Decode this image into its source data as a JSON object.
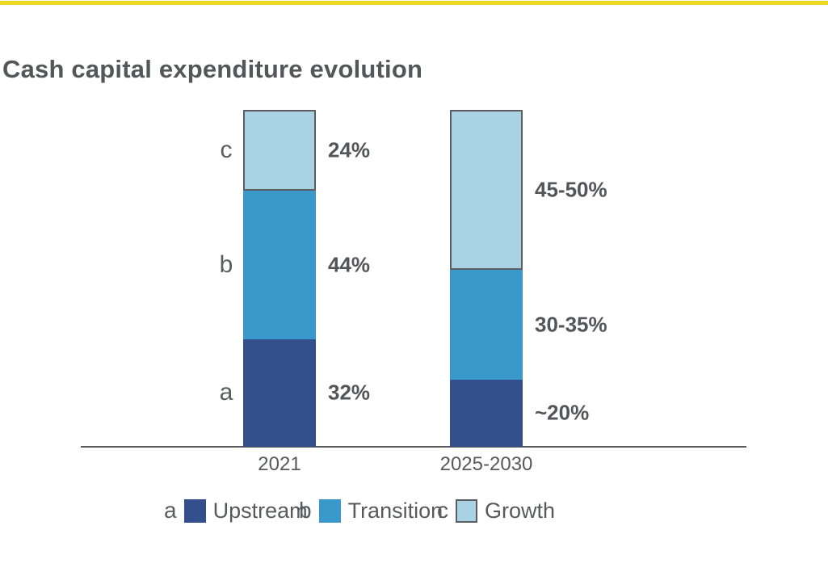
{
  "page": {
    "title": "Cash capital expenditure evolution"
  },
  "colors": {
    "accent_yellow": "#E9D724",
    "axis_gray": "#595A5C",
    "text_gray": "#58595B",
    "segment_stroke": "#5B5D60"
  },
  "chart_data": {
    "type": "bar",
    "stacked": true,
    "title": "Cash capital expenditure evolution",
    "categories": [
      "2021",
      "2025-2030"
    ],
    "series": [
      {
        "key": "a",
        "name": "Upstream",
        "color": "#34508C",
        "outlined": false,
        "values": [
          32,
          20
        ],
        "value_labels": [
          "32%",
          "~20%"
        ]
      },
      {
        "key": "b",
        "name": "Transition",
        "color": "#3A98CA",
        "outlined": false,
        "values": [
          44,
          32.5
        ],
        "value_labels": [
          "44%",
          "30-35%"
        ]
      },
      {
        "key": "c",
        "name": "Growth",
        "color": "#A9D2E4",
        "outlined": true,
        "values": [
          24,
          47.5
        ],
        "value_labels": [
          "24%",
          "45-50%"
        ]
      }
    ],
    "ylim": [
      0,
      100
    ],
    "gridlines": false,
    "y_axis_visible": false,
    "legend_position": "bottom"
  },
  "legend": {
    "items": [
      {
        "key": "a",
        "label": "Upstream"
      },
      {
        "key": "b",
        "label": "Transition"
      },
      {
        "key": "c",
        "label": "Growth"
      }
    ]
  }
}
